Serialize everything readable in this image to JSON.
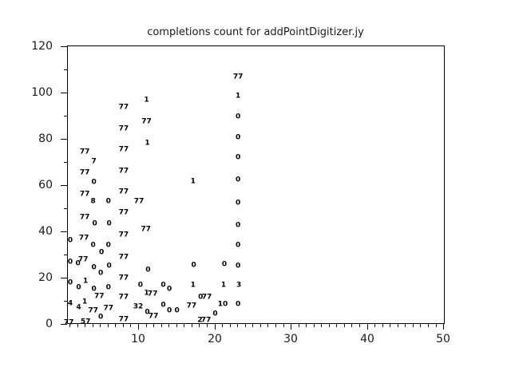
{
  "window": {
    "background": "#ffffff"
  },
  "colors": {
    "axis": "#000000",
    "tick_label": "#1a1a1a",
    "title": "#1a1a1a",
    "marker_text": "#000000"
  },
  "chart_data": {
    "type": "scatter",
    "title": "completions count for addPointDigitizer.jy",
    "xlabel": "",
    "ylabel": "",
    "grid": false,
    "legend": null,
    "marker_style": "numeric-text-labels",
    "xlim": [
      0.68,
      50.2
    ],
    "ylim": [
      0,
      120.3
    ],
    "x_major_ticks": [
      10,
      20,
      30,
      40,
      50
    ],
    "x_minor_step": 1,
    "y_major_ticks": [
      0,
      20,
      40,
      60,
      80,
      100,
      120
    ],
    "y_minor_step": 10,
    "points": [
      {
        "x": 0.9,
        "y": 0.2,
        "label": "77"
      },
      {
        "x": 1.1,
        "y": 36.0,
        "label": "0"
      },
      {
        "x": 1.1,
        "y": 26.6,
        "label": "0"
      },
      {
        "x": 1.1,
        "y": 17.5,
        "label": "0"
      },
      {
        "x": 1.1,
        "y": 8.8,
        "label": "4"
      },
      {
        "x": 2.1,
        "y": 25.7,
        "label": "0"
      },
      {
        "x": 2.2,
        "y": 15.5,
        "label": "0"
      },
      {
        "x": 2.2,
        "y": 6.9,
        "label": "4"
      },
      {
        "x": 3.0,
        "y": 74.0,
        "label": "77"
      },
      {
        "x": 3.0,
        "y": 65.0,
        "label": "77"
      },
      {
        "x": 3.0,
        "y": 56.0,
        "label": "77"
      },
      {
        "x": 3.0,
        "y": 46.0,
        "label": "77"
      },
      {
        "x": 2.9,
        "y": 37.0,
        "label": "77"
      },
      {
        "x": 2.8,
        "y": 27.6,
        "label": "77"
      },
      {
        "x": 3.1,
        "y": 18.3,
        "label": "1"
      },
      {
        "x": 3.0,
        "y": 9.3,
        "label": "1"
      },
      {
        "x": 3.1,
        "y": 0.7,
        "label": "57"
      },
      {
        "x": 4.2,
        "y": 70.0,
        "label": "7"
      },
      {
        "x": 4.2,
        "y": 61.0,
        "label": "0"
      },
      {
        "x": 4.1,
        "y": 52.6,
        "label": "8"
      },
      {
        "x": 4.3,
        "y": 43.0,
        "label": "0"
      },
      {
        "x": 4.1,
        "y": 33.8,
        "label": "0"
      },
      {
        "x": 4.2,
        "y": 24.3,
        "label": "0"
      },
      {
        "x": 4.2,
        "y": 14.8,
        "label": "0"
      },
      {
        "x": 4.1,
        "y": 5.5,
        "label": "77"
      },
      {
        "x": 5.2,
        "y": 30.7,
        "label": "0"
      },
      {
        "x": 5.1,
        "y": 21.8,
        "label": "0"
      },
      {
        "x": 4.9,
        "y": 11.7,
        "label": "77"
      },
      {
        "x": 5.1,
        "y": 2.8,
        "label": "0"
      },
      {
        "x": 6.1,
        "y": 52.8,
        "label": "0"
      },
      {
        "x": 6.2,
        "y": 43.0,
        "label": "0"
      },
      {
        "x": 6.1,
        "y": 33.8,
        "label": "0"
      },
      {
        "x": 6.2,
        "y": 24.8,
        "label": "0"
      },
      {
        "x": 6.1,
        "y": 15.5,
        "label": "0"
      },
      {
        "x": 6.1,
        "y": 6.6,
        "label": "77"
      },
      {
        "x": 8.1,
        "y": 93.5,
        "label": "77"
      },
      {
        "x": 8.1,
        "y": 84.2,
        "label": "77"
      },
      {
        "x": 8.1,
        "y": 75.0,
        "label": "77"
      },
      {
        "x": 8.1,
        "y": 66.0,
        "label": "77"
      },
      {
        "x": 8.1,
        "y": 57.0,
        "label": "77"
      },
      {
        "x": 8.1,
        "y": 48.0,
        "label": "77"
      },
      {
        "x": 8.1,
        "y": 38.2,
        "label": "77"
      },
      {
        "x": 8.1,
        "y": 28.6,
        "label": "77"
      },
      {
        "x": 8.1,
        "y": 19.8,
        "label": "77"
      },
      {
        "x": 8.1,
        "y": 11.4,
        "label": "77"
      },
      {
        "x": 8.1,
        "y": 1.7,
        "label": "77"
      },
      {
        "x": 10.1,
        "y": 52.8,
        "label": "77"
      },
      {
        "x": 10.3,
        "y": 16.6,
        "label": "0"
      },
      {
        "x": 10.0,
        "y": 7.3,
        "label": "32"
      },
      {
        "x": 11.1,
        "y": 96.5,
        "label": "1"
      },
      {
        "x": 11.1,
        "y": 87.2,
        "label": "77"
      },
      {
        "x": 11.2,
        "y": 78.0,
        "label": "1"
      },
      {
        "x": 11.0,
        "y": 40.7,
        "label": "77"
      },
      {
        "x": 11.3,
        "y": 23.2,
        "label": "0"
      },
      {
        "x": 11.1,
        "y": 13.1,
        "label": "1"
      },
      {
        "x": 11.9,
        "y": 12.6,
        "label": "77"
      },
      {
        "x": 11.2,
        "y": 4.8,
        "label": "0"
      },
      {
        "x": 12.0,
        "y": 3.0,
        "label": "77"
      },
      {
        "x": 13.3,
        "y": 16.6,
        "label": "0"
      },
      {
        "x": 13.3,
        "y": 7.9,
        "label": "0"
      },
      {
        "x": 14.1,
        "y": 14.8,
        "label": "0"
      },
      {
        "x": 14.1,
        "y": 5.7,
        "label": "0"
      },
      {
        "x": 15.1,
        "y": 5.7,
        "label": "0"
      },
      {
        "x": 17.2,
        "y": 61.4,
        "label": "1"
      },
      {
        "x": 17.3,
        "y": 25.2,
        "label": "0"
      },
      {
        "x": 17.2,
        "y": 16.5,
        "label": "1"
      },
      {
        "x": 17.0,
        "y": 7.6,
        "label": "77"
      },
      {
        "x": 18.2,
        "y": 11.4,
        "label": "0"
      },
      {
        "x": 19.0,
        "y": 11.4,
        "label": "77"
      },
      {
        "x": 18.1,
        "y": 1.4,
        "label": "2"
      },
      {
        "x": 18.9,
        "y": 1.4,
        "label": "77"
      },
      {
        "x": 20.1,
        "y": 4.0,
        "label": "0"
      },
      {
        "x": 21.3,
        "y": 25.5,
        "label": "0"
      },
      {
        "x": 21.2,
        "y": 16.5,
        "label": "1"
      },
      {
        "x": 21.1,
        "y": 8.3,
        "label": "10"
      },
      {
        "x": 23.1,
        "y": 106.6,
        "label": "77"
      },
      {
        "x": 23.1,
        "y": 98.1,
        "label": "1"
      },
      {
        "x": 23.1,
        "y": 89.3,
        "label": "0"
      },
      {
        "x": 23.1,
        "y": 80.3,
        "label": "0"
      },
      {
        "x": 23.1,
        "y": 71.7,
        "label": "0"
      },
      {
        "x": 23.1,
        "y": 62.2,
        "label": "0"
      },
      {
        "x": 23.1,
        "y": 52.1,
        "label": "0"
      },
      {
        "x": 23.1,
        "y": 42.4,
        "label": "0"
      },
      {
        "x": 23.1,
        "y": 33.8,
        "label": "0"
      },
      {
        "x": 23.1,
        "y": 24.8,
        "label": "0"
      },
      {
        "x": 23.2,
        "y": 16.5,
        "label": "3"
      },
      {
        "x": 23.1,
        "y": 8.3,
        "label": "0"
      }
    ]
  }
}
